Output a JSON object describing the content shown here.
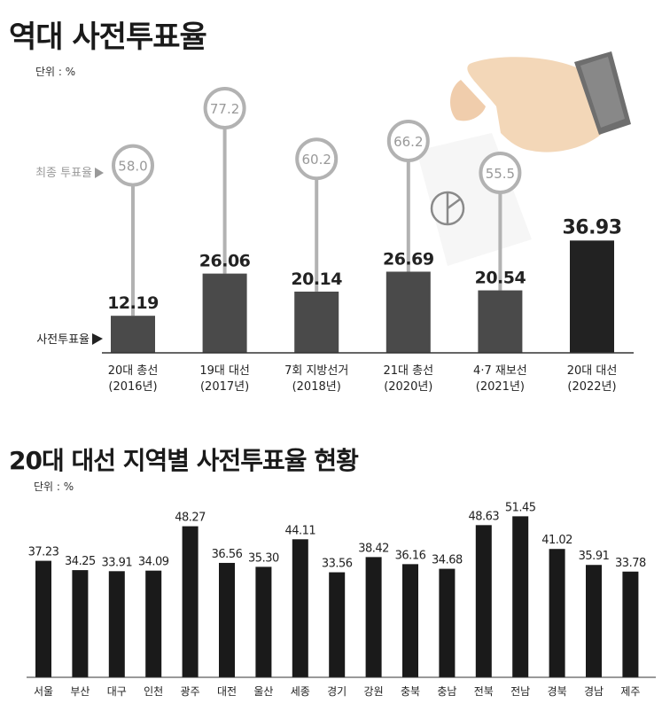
{
  "chart1": {
    "title": "역대 사전투표율",
    "unit": "단위 : %",
    "final_label": "최종 투표율",
    "early_label": "사전투표율",
    "chart_data": {
      "type": "bar",
      "categories": [
        "20대 총선",
        "19대 대선",
        "7회 지방선거",
        "21대 총선",
        "4·7 재보선",
        "20대 대선"
      ],
      "years": [
        "(2016년)",
        "(2017년)",
        "(2018년)",
        "(2020년)",
        "(2021년)",
        "(2022년)"
      ],
      "series": [
        {
          "name": "사전투표율",
          "values": [
            12.19,
            26.06,
            20.14,
            26.69,
            20.54,
            36.93
          ]
        },
        {
          "name": "최종 투표율",
          "values": [
            58.0,
            77.2,
            60.2,
            66.2,
            55.5,
            null
          ]
        }
      ],
      "value_labels": [
        "12.19",
        "26.06",
        "20.14",
        "26.69",
        "20.54",
        "36.93"
      ],
      "final_labels": [
        "58.0",
        "77.2",
        "60.2",
        "66.2",
        "55.5",
        ""
      ],
      "colors": {
        "bar": "#4a4a4a",
        "highlight": "#222222",
        "ring": "#b2b2b2",
        "label": "#999999"
      }
    }
  },
  "chart2": {
    "title": "20대 대선 지역별 사전투표율 현황",
    "unit": "단위 : %",
    "chart_data": {
      "type": "bar",
      "categories": [
        "서울",
        "부산",
        "대구",
        "인천",
        "광주",
        "대전",
        "울산",
        "세종",
        "경기",
        "강원",
        "충북",
        "충남",
        "전북",
        "전남",
        "경북",
        "경남",
        "제주"
      ],
      "values": [
        37.23,
        34.25,
        33.91,
        34.09,
        48.27,
        36.56,
        35.3,
        44.11,
        33.56,
        38.42,
        36.16,
        34.68,
        48.63,
        51.45,
        41.02,
        35.91,
        33.78
      ],
      "value_labels": [
        "37.23",
        "34.25",
        "33.91",
        "34.09",
        "48.27",
        "36.56",
        "35.30",
        "44.11",
        "33.56",
        "38.42",
        "36.16",
        "34.68",
        "48.63",
        "51.45",
        "41.02",
        "35.91",
        "33.78"
      ],
      "colors": {
        "bar": "#1a1a1a"
      }
    }
  }
}
